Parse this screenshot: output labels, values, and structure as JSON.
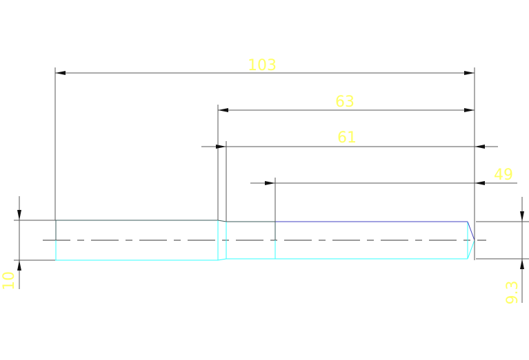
{
  "dimensions": {
    "overall_length": "103",
    "length_63": "63",
    "length_61": "61",
    "length_49": "49",
    "diameter_left": "10",
    "diameter_right": "9.3"
  },
  "colors": {
    "dimension_text": "#ffff66",
    "dimension_line": "#555555",
    "visible_edge_cyan": "#33ffff",
    "visible_edge_blue": "#4040c0",
    "centerline": "#999999",
    "background": "#ffffff"
  }
}
